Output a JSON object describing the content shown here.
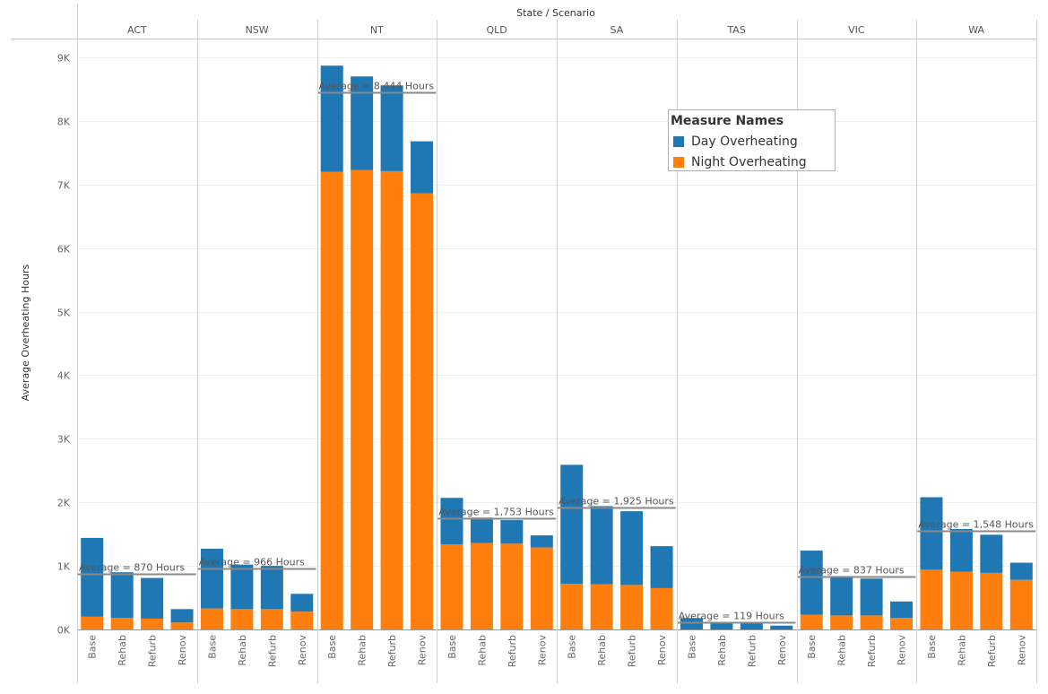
{
  "chart_data": {
    "type": "bar",
    "stacked": true,
    "header": "State / Scenario",
    "ylabel": "Average Overheating Hours",
    "ylim": [
      0,
      9000
    ],
    "yticks": [
      0,
      1000,
      2000,
      3000,
      4000,
      5000,
      6000,
      7000,
      8000,
      9000
    ],
    "ytick_labels": [
      "0K",
      "1K",
      "2K",
      "3K",
      "4K",
      "5K",
      "6K",
      "7K",
      "8K",
      "9K"
    ],
    "legend": {
      "title": "Measure Names",
      "position": "top-right",
      "entries": [
        {
          "name": "Day Overheating",
          "color": "#1f77b4"
        },
        {
          "name": "Night Overheating",
          "color": "#ff7f0e"
        }
      ]
    },
    "scenarios": [
      "Base",
      "Rehab",
      "Refurb",
      "Renov"
    ],
    "states": [
      {
        "name": "ACT",
        "average": 870,
        "average_label": "Average = 870 Hours",
        "night": [
          200,
          180,
          170,
          110
        ],
        "day": [
          1240,
          720,
          640,
          210
        ]
      },
      {
        "name": "NSW",
        "average": 966,
        "average_label": "Average = 966 Hours",
        "night": [
          330,
          320,
          320,
          280
        ],
        "day": [
          940,
          700,
          680,
          280
        ]
      },
      {
        "name": "NT",
        "average": 8444,
        "average_label": "Average = 8,444 Hours",
        "night": [
          7200,
          7230,
          7210,
          6860
        ],
        "day": [
          1670,
          1470,
          1350,
          820
        ]
      },
      {
        "name": "QLD",
        "average": 1753,
        "average_label": "Average = 1,753 Hours",
        "night": [
          1340,
          1360,
          1350,
          1290
        ],
        "day": [
          730,
          400,
          370,
          190
        ]
      },
      {
        "name": "SA",
        "average": 1925,
        "average_label": "Average = 1,925 Hours",
        "night": [
          720,
          710,
          700,
          650
        ],
        "day": [
          1870,
          1230,
          1160,
          660
        ]
      },
      {
        "name": "TAS",
        "average": 119,
        "average_label": "Average = 119 Hours",
        "night": [
          0,
          0,
          0,
          0
        ],
        "day": [
          180,
          120,
          110,
          60
        ]
      },
      {
        "name": "VIC",
        "average": 837,
        "average_label": "Average = 837 Hours",
        "night": [
          230,
          220,
          220,
          180
        ],
        "day": [
          1010,
          620,
          580,
          260
        ]
      },
      {
        "name": "WA",
        "average": 1548,
        "average_label": "Average = 1,548 Hours",
        "night": [
          940,
          910,
          890,
          780
        ],
        "day": [
          1140,
          670,
          600,
          270
        ]
      }
    ]
  }
}
